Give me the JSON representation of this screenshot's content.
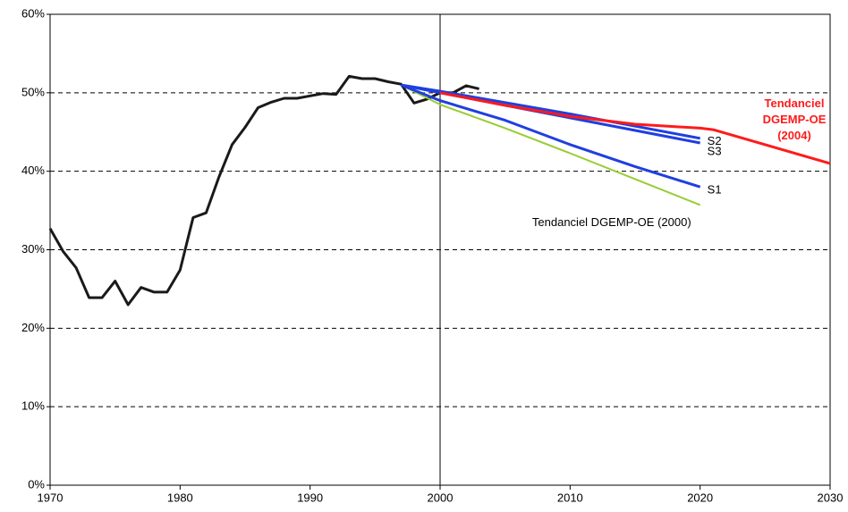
{
  "chart_data": {
    "type": "line",
    "xlim": [
      1970,
      2030
    ],
    "xticks": [
      1970,
      1980,
      1990,
      2000,
      2010,
      2020,
      2030
    ],
    "ylim": [
      0,
      60
    ],
    "yticks": [
      {
        "value": 0,
        "label": "0%"
      },
      {
        "value": 10,
        "label": "10%"
      },
      {
        "value": 20,
        "label": "20%"
      },
      {
        "value": 30,
        "label": "30%"
      },
      {
        "value": 40,
        "label": "40%"
      },
      {
        "value": 50,
        "label": "50%"
      },
      {
        "value": 60,
        "label": "60%"
      }
    ],
    "grid": true,
    "reference_x": 2000,
    "series": [
      {
        "name": null,
        "color": "#1a1a1a",
        "x": [
          1970,
          1971,
          1972,
          1973,
          1974,
          1975,
          1976,
          1977,
          1978,
          1979,
          1980,
          1981,
          1982,
          1983,
          1984,
          1985,
          1986,
          1987,
          1988,
          1989,
          1990,
          1991,
          1992,
          1993,
          1994,
          1995,
          1996,
          1997,
          1998,
          1999,
          2000,
          2001,
          2002,
          2003
        ],
        "values": [
          32.7,
          29.8,
          27.7,
          23.9,
          23.9,
          26.0,
          23.0,
          25.2,
          24.6,
          24.6,
          27.4,
          34.1,
          34.7,
          39.3,
          43.4,
          45.6,
          48.1,
          48.8,
          49.3,
          49.3,
          49.6,
          49.9,
          49.8,
          52.1,
          51.8,
          51.8,
          51.4,
          51.1,
          48.7,
          49.2,
          50.0,
          50.0,
          50.9,
          50.5
        ]
      },
      {
        "name": "Tendanciel DGEMP-OE (2000)",
        "color": "#99cc33",
        "x": [
          1997,
          2000,
          2005,
          2010,
          2015,
          2020
        ],
        "values": [
          51.0,
          48.5,
          45.5,
          42.3,
          39.0,
          35.7
        ]
      },
      {
        "name": "S1",
        "color": "#1f3fe0",
        "x": [
          1997,
          2000,
          2005,
          2010,
          2015,
          2020
        ],
        "values": [
          51.0,
          49.0,
          46.5,
          43.4,
          40.6,
          38.0
        ]
      },
      {
        "name": "S3",
        "color": "#1f3fe0",
        "x": [
          1997,
          2000,
          2010,
          2020
        ],
        "values": [
          51.0,
          50.0,
          46.8,
          43.6
        ]
      },
      {
        "name": "S2",
        "color": "#1f3fe0",
        "x": [
          1997,
          2000,
          2010,
          2020
        ],
        "values": [
          51.0,
          50.2,
          47.3,
          44.2
        ]
      },
      {
        "name": "Tendanciel DGEMP-OE (2004)",
        "color": "#ff1a1a",
        "x": [
          2000,
          2005,
          2010,
          2015,
          2020,
          2021,
          2030
        ],
        "values": [
          50.0,
          48.4,
          47.0,
          46.0,
          45.5,
          45.3,
          41.0
        ]
      }
    ]
  }
}
